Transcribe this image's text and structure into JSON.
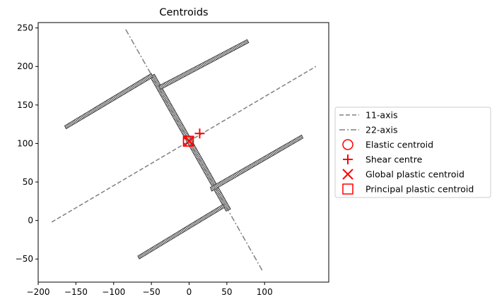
{
  "chart_data": {
    "type": "scatter",
    "title": "Centroids",
    "xlabel": "",
    "ylabel": "",
    "xlim": [
      -200,
      185
    ],
    "ylim": [
      -80,
      257
    ],
    "xticks": [
      -200,
      -150,
      -100,
      -50,
      0,
      50,
      100
    ],
    "yticks": [
      -50,
      0,
      50,
      100,
      150,
      200,
      250
    ],
    "grid": false,
    "legend_position": "center-right outside",
    "axis_lines": [
      {
        "name": "11-axis",
        "style": "dashed",
        "color": "#808080",
        "points": [
          [
            -182,
            -2
          ],
          [
            168,
            200
          ]
        ]
      },
      {
        "name": "22-axis",
        "style": "dashdot",
        "color": "#808080",
        "points": [
          [
            -84,
            248
          ],
          [
            97,
            -65
          ]
        ]
      }
    ],
    "section_parts": [
      {
        "kind": "web",
        "polygon": [
          [
            -52,
            187
          ],
          [
            -46,
            190
          ],
          [
            55,
            15
          ],
          [
            49,
            12
          ]
        ]
      },
      {
        "kind": "flange",
        "polygon": [
          [
            -165,
            123
          ],
          [
            -163,
            119
          ],
          [
            -48,
            186
          ],
          [
            -50,
            191
          ]
        ]
      },
      {
        "kind": "flange",
        "polygon": [
          [
            -40,
            175
          ],
          [
            -38,
            170
          ],
          [
            79,
            231
          ],
          [
            77,
            235
          ]
        ]
      },
      {
        "kind": "flange",
        "polygon": [
          [
            28,
            43
          ],
          [
            30,
            38
          ],
          [
            151,
            107
          ],
          [
            149,
            111
          ]
        ]
      },
      {
        "kind": "flange",
        "polygon": [
          [
            -68,
            -46
          ],
          [
            -66,
            -50
          ],
          [
            47,
            17
          ],
          [
            45,
            21
          ]
        ]
      }
    ],
    "markers": [
      {
        "name": "Elastic centroid",
        "shape": "circle",
        "color": "#ff0000",
        "x": -1,
        "y": 103
      },
      {
        "name": "Shear centre",
        "shape": "plus",
        "color": "#ff0000",
        "x": 14,
        "y": 113
      },
      {
        "name": "Global plastic centroid",
        "shape": "x",
        "color": "#ff0000",
        "x": 0,
        "y": 103
      },
      {
        "name": "Principal plastic centroid",
        "shape": "square",
        "color": "#ff0000",
        "x": -1,
        "y": 103
      }
    ],
    "legend": [
      {
        "label": "11-axis",
        "symbol": "dashed-line"
      },
      {
        "label": "22-axis",
        "symbol": "dashdot-line"
      },
      {
        "label": "Elastic centroid",
        "symbol": "circle"
      },
      {
        "label": "Shear centre",
        "symbol": "plus"
      },
      {
        "label": "Global plastic centroid",
        "symbol": "x"
      },
      {
        "label": "Principal plastic centroid",
        "symbol": "square"
      }
    ]
  }
}
